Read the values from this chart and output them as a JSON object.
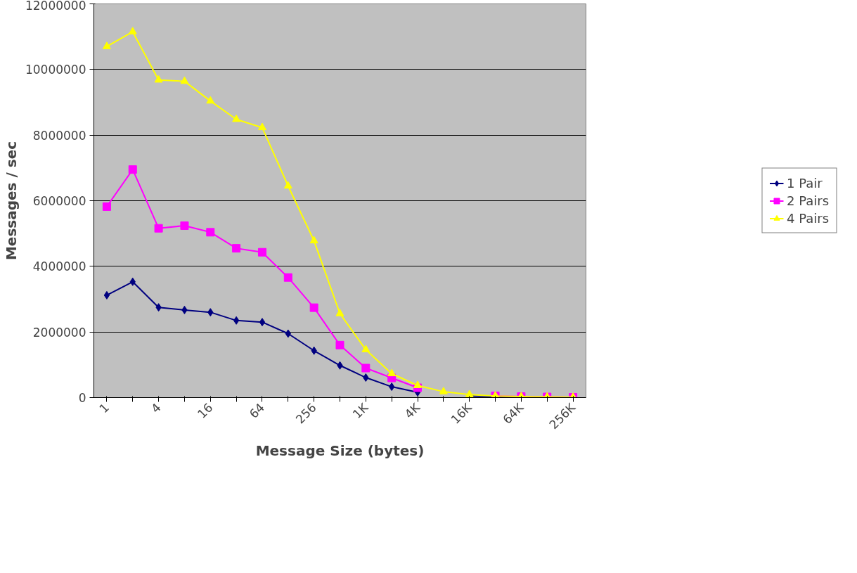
{
  "chart_data": {
    "type": "line",
    "xlabel": "Message Size (bytes)",
    "ylabel": "Messages / sec",
    "categories": [
      "1",
      null,
      "4",
      null,
      "16",
      null,
      "64",
      null,
      "256",
      null,
      "1K",
      null,
      "4K",
      null,
      "16K",
      null,
      "64K",
      null,
      "256K"
    ],
    "series": [
      {
        "name": "1 Pair",
        "color": "#000080",
        "marker": "diamond",
        "values": [
          3120000,
          3530000,
          2750000,
          2670000,
          2600000,
          2350000,
          2300000,
          1950000,
          1430000,
          980000,
          610000,
          330000,
          160000,
          null,
          50000,
          30000,
          20000,
          null,
          null
        ]
      },
      {
        "name": "2 Pairs",
        "color": "#ff00ff",
        "marker": "square",
        "values": [
          5820000,
          6950000,
          5160000,
          5240000,
          5040000,
          4550000,
          4430000,
          3660000,
          2740000,
          1600000,
          900000,
          600000,
          300000,
          null,
          null,
          50000,
          30000,
          20000,
          10000
        ]
      },
      {
        "name": "4 Pairs",
        "color": "#ffff00",
        "marker": "triangle",
        "values": [
          10700000,
          11150000,
          9680000,
          9640000,
          9040000,
          8480000,
          8230000,
          6450000,
          4780000,
          2560000,
          1460000,
          730000,
          370000,
          180000,
          90000,
          50000,
          30000,
          20000,
          10000
        ]
      }
    ],
    "ylim": [
      0,
      12000000
    ],
    "yticks": [
      0,
      2000000,
      4000000,
      6000000,
      8000000,
      10000000,
      12000000
    ],
    "grid": "y",
    "legend": "right",
    "line_style": "solid"
  }
}
